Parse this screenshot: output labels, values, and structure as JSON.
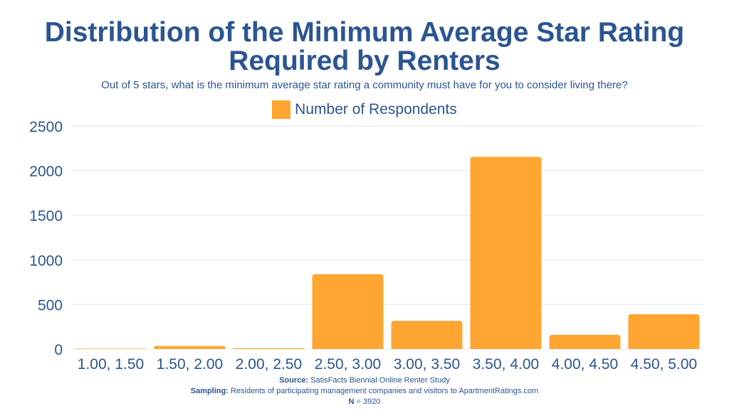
{
  "chart_data": {
    "type": "bar",
    "title_line1": "Distribution of the Minimum Average Star Rating",
    "title_line2": "Required by Renters",
    "subtitle": "Out of 5 stars, what is the minimum average star rating a community must have for you to consider living there?",
    "legend": "Number of Respondents",
    "categories": [
      "1.00, 1.50",
      "1.50, 2.00",
      "2.00, 2.50",
      "2.50, 3.00",
      "3.00, 3.50",
      "3.50, 4.00",
      "4.00, 4.50",
      "4.50, 5.00"
    ],
    "series": [
      {
        "name": "Number of Respondents",
        "values": [
          5,
          35,
          10,
          840,
          315,
          2155,
          160,
          390
        ]
      }
    ],
    "yticks": [
      0,
      500,
      1000,
      1500,
      2000,
      2500
    ],
    "ylim": [
      0,
      2500
    ],
    "grid": true
  },
  "colors": {
    "bar": "#ffa532",
    "text": "#2b5592",
    "grid": "#e6e6e6"
  },
  "footer": {
    "source_label": "Source:",
    "source_value": "SatisFacts Biennial Online Renter Study",
    "sampling_label": "Sampling:",
    "sampling_value": "Residents of participating management companies and visitors to ApartmentRatings.com",
    "n_label": "N",
    "n_value": "= 3920"
  }
}
